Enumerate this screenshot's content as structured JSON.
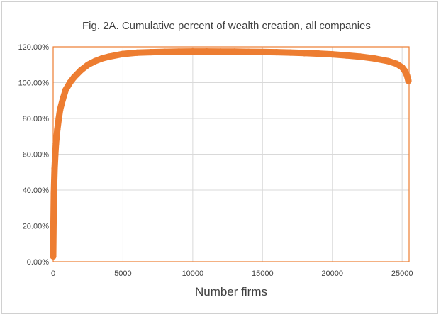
{
  "chart_data": {
    "type": "scatter",
    "title": "Fig. 2A. Cumulative percent of wealth creation, all companies",
    "xlabel": "Number firms",
    "ylabel": "",
    "xlim": [
      0,
      25500
    ],
    "ylim": [
      0,
      120
    ],
    "xticks": [
      0,
      5000,
      10000,
      15000,
      20000,
      25000
    ],
    "xtick_labels": [
      "0",
      "5000",
      "10000",
      "15000",
      "20000",
      "25000"
    ],
    "yticks": [
      0,
      20,
      40,
      60,
      80,
      100,
      120
    ],
    "ytick_labels": [
      "0.00%",
      "20.00%",
      "40.00%",
      "60.00%",
      "80.00%",
      "100.00%",
      "120.00%"
    ],
    "grid": true,
    "legend": "none",
    "series_color": "#ED7D31",
    "points": [
      [
        0,
        3
      ],
      [
        25,
        22
      ],
      [
        50,
        38
      ],
      [
        100,
        52
      ],
      [
        150,
        60
      ],
      [
        200,
        66
      ],
      [
        300,
        74
      ],
      [
        400,
        80
      ],
      [
        500,
        85
      ],
      [
        700,
        91
      ],
      [
        900,
        96
      ],
      [
        1200,
        100
      ],
      [
        1500,
        103
      ],
      [
        2000,
        107
      ],
      [
        2500,
        110
      ],
      [
        3000,
        112
      ],
      [
        3500,
        113.5
      ],
      [
        4000,
        114.5
      ],
      [
        5000,
        116
      ],
      [
        6000,
        116.7
      ],
      [
        7000,
        117
      ],
      [
        8000,
        117.2
      ],
      [
        9000,
        117.3
      ],
      [
        10000,
        117.4
      ],
      [
        11000,
        117.4
      ],
      [
        12000,
        117.3
      ],
      [
        13000,
        117.3
      ],
      [
        14000,
        117.2
      ],
      [
        15000,
        117.1
      ],
      [
        16000,
        117
      ],
      [
        17000,
        116.8
      ],
      [
        18000,
        116.5
      ],
      [
        19000,
        116.2
      ],
      [
        20000,
        115.8
      ],
      [
        21000,
        115.2
      ],
      [
        22000,
        114.5
      ],
      [
        23000,
        113.5
      ],
      [
        24000,
        112
      ],
      [
        24600,
        110.5
      ],
      [
        25000,
        108.5
      ],
      [
        25200,
        106.5
      ],
      [
        25350,
        104
      ],
      [
        25450,
        101
      ]
    ]
  }
}
